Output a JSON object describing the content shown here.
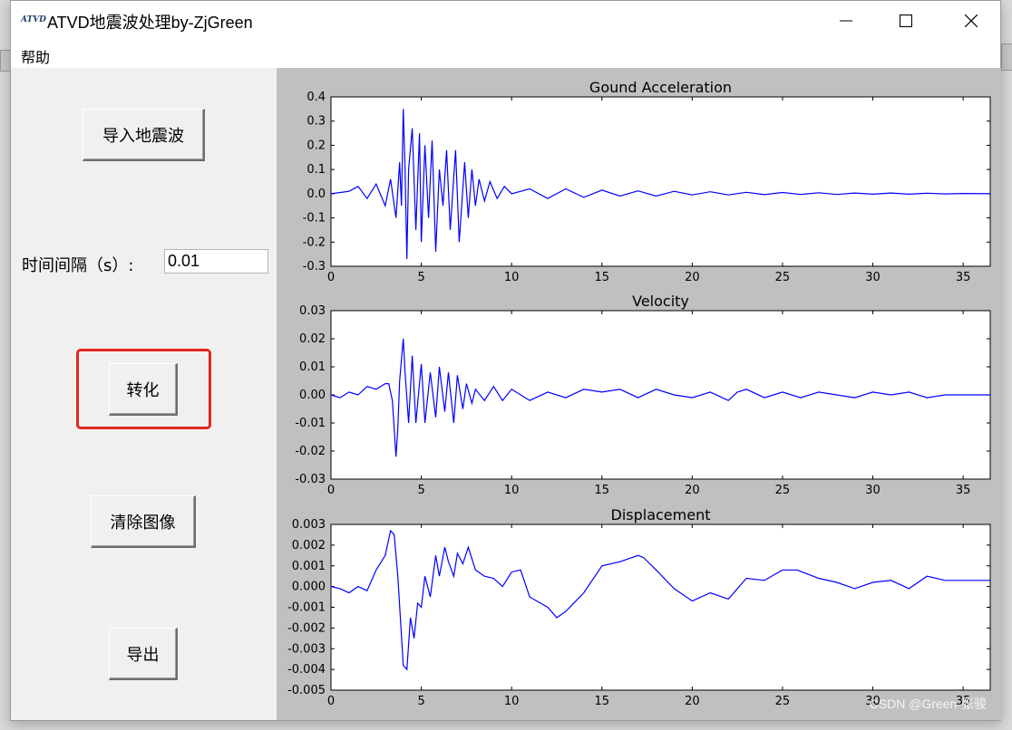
{
  "window": {
    "title": "ATVD地震波处理by-ZjGreen",
    "logo_text": "ATVD"
  },
  "menu": {
    "help": "帮助"
  },
  "left_panel": {
    "import_button": "导入地震波",
    "interval_label": "时间间隔（s）:",
    "interval_value": "0.01",
    "convert_button": "转化",
    "clear_button": "清除图像",
    "export_button": "导出"
  },
  "watermark": "CSDN @Green-张骏",
  "colors": {
    "trace": "#0000ff",
    "highlight": "#e2271f",
    "plot_bg": "#c0c0c0"
  },
  "chart_data": [
    {
      "type": "line",
      "title": "Gound Acceleration",
      "xlim": [
        0,
        36.5
      ],
      "ylim": [
        -0.3,
        0.4
      ],
      "xticks": [
        "0",
        "5",
        "10",
        "15",
        "20",
        "25",
        "30",
        "35"
      ],
      "yticks": [
        "0.4",
        "0.3",
        "0.2",
        "0.1",
        "0.0",
        "-0.1",
        "-0.2",
        "-0.3"
      ],
      "series": [
        {
          "x": [
            0,
            1,
            1.5,
            2,
            2.5,
            3,
            3.3,
            3.6,
            3.8,
            3.9,
            4.0,
            4.1,
            4.2,
            4.3,
            4.5,
            4.7,
            4.9,
            5.0,
            5.2,
            5.4,
            5.6,
            5.8,
            6.0,
            6.2,
            6.4,
            6.6,
            6.9,
            7.1,
            7.4,
            7.6,
            7.8,
            8.0,
            8.2,
            8.5,
            8.8,
            9.2,
            9.6,
            10,
            11,
            12,
            13,
            14,
            15,
            16,
            17,
            18,
            19,
            20,
            21,
            22,
            23,
            24,
            25,
            26,
            27,
            28,
            29,
            30,
            31,
            32,
            33,
            34,
            35,
            36.5
          ],
          "y": [
            0.0,
            0.01,
            0.03,
            -0.02,
            0.04,
            -0.05,
            0.06,
            -0.1,
            0.13,
            -0.05,
            0.35,
            0.1,
            -0.27,
            0.1,
            0.27,
            -0.15,
            0.25,
            -0.2,
            0.2,
            -0.1,
            0.22,
            -0.24,
            0.1,
            -0.05,
            0.18,
            -0.15,
            0.18,
            -0.2,
            0.13,
            -0.1,
            0.1,
            -0.05,
            0.06,
            -0.03,
            0.05,
            -0.02,
            0.03,
            0.0,
            0.02,
            -0.02,
            0.02,
            -0.015,
            0.015,
            -0.01,
            0.012,
            -0.01,
            0.01,
            -0.005,
            0.008,
            -0.005,
            0.006,
            -0.004,
            0.005,
            -0.003,
            0.004,
            -0.003,
            0.003,
            -0.002,
            0.003,
            -0.002,
            0.002,
            -0.001,
            0.001,
            0.0
          ]
        }
      ]
    },
    {
      "type": "line",
      "title": "Velocity",
      "xlim": [
        0,
        36.5
      ],
      "ylim": [
        -0.03,
        0.03
      ],
      "xticks": [
        "0",
        "5",
        "10",
        "15",
        "20",
        "25",
        "30",
        "35"
      ],
      "yticks": [
        "0.03",
        "0.02",
        "0.01",
        "0.00",
        "-0.01",
        "-0.02",
        "-0.03"
      ],
      "series": [
        {
          "x": [
            0,
            0.5,
            1.0,
            1.5,
            2.0,
            2.5,
            3.0,
            3.2,
            3.4,
            3.5,
            3.6,
            3.7,
            3.8,
            4.0,
            4.1,
            4.3,
            4.5,
            4.7,
            5.0,
            5.2,
            5.5,
            5.8,
            6.0,
            6.3,
            6.5,
            6.8,
            7.0,
            7.3,
            7.5,
            7.8,
            8.0,
            8.5,
            9.0,
            9.5,
            10,
            11,
            12,
            13,
            14,
            15,
            16,
            17,
            18,
            19,
            20,
            21,
            22,
            22.5,
            23,
            24,
            25,
            26,
            27,
            28,
            29,
            30,
            31,
            32,
            33,
            34,
            35,
            36.5
          ],
          "y": [
            0.0,
            -0.001,
            0.001,
            0.0,
            0.003,
            0.002,
            0.004,
            0.004,
            -0.002,
            -0.012,
            -0.022,
            -0.012,
            0.005,
            0.02,
            0.008,
            -0.01,
            0.014,
            -0.01,
            0.011,
            -0.01,
            0.008,
            -0.008,
            0.01,
            -0.006,
            0.008,
            -0.01,
            0.007,
            -0.005,
            0.004,
            -0.003,
            0.002,
            -0.002,
            0.003,
            -0.002,
            0.002,
            -0.002,
            0.001,
            -0.001,
            0.002,
            0.001,
            0.002,
            -0.001,
            0.002,
            0.0,
            -0.001,
            0.001,
            -0.002,
            0.001,
            0.002,
            -0.001,
            0.001,
            -0.001,
            0.001,
            0.0,
            -0.001,
            0.001,
            0.0,
            0.001,
            -0.001,
            0.0,
            0.0,
            0.0
          ]
        }
      ]
    },
    {
      "type": "line",
      "title": "Displacement",
      "xlim": [
        0,
        36.5
      ],
      "ylim": [
        -0.005,
        0.003
      ],
      "xticks": [
        "0",
        "5",
        "10",
        "15",
        "20",
        "25",
        "30",
        "35"
      ],
      "yticks": [
        "0.003",
        "0.002",
        "0.001",
        "0.000",
        "-0.001",
        "-0.002",
        "-0.003",
        "-0.004",
        "-0.005"
      ],
      "series": [
        {
          "x": [
            0,
            0.5,
            1.0,
            1.5,
            2.0,
            2.5,
            3.0,
            3.3,
            3.5,
            3.7,
            4.0,
            4.2,
            4.4,
            4.6,
            4.8,
            5.0,
            5.2,
            5.5,
            5.8,
            6.0,
            6.3,
            6.5,
            6.8,
            7.0,
            7.3,
            7.6,
            8.0,
            8.5,
            9.0,
            9.5,
            10.0,
            10.5,
            11,
            12,
            12.5,
            13,
            14,
            15,
            16,
            17,
            17.3,
            18,
            19,
            20,
            21,
            22,
            23,
            24,
            25,
            25.8,
            27,
            28,
            29,
            30,
            31,
            32,
            33,
            34,
            35,
            36.5
          ],
          "y": [
            0.0,
            -0.0001,
            -0.0003,
            0.0,
            -0.0002,
            0.0008,
            0.0015,
            0.0027,
            0.0025,
            0.0005,
            -0.0038,
            -0.004,
            -0.0015,
            -0.0025,
            -0.0008,
            -0.001,
            0.0005,
            -0.0005,
            0.0015,
            0.0005,
            0.0019,
            0.0012,
            0.0005,
            0.0016,
            0.0011,
            0.0019,
            0.0008,
            0.0005,
            0.0004,
            0.0,
            0.0007,
            0.0008,
            -0.0005,
            -0.001,
            -0.0015,
            -0.0012,
            -0.0003,
            0.001,
            0.0012,
            0.0015,
            0.0014,
            0.0008,
            -0.0001,
            -0.0007,
            -0.0003,
            -0.0006,
            0.0004,
            0.0003,
            0.0008,
            0.0008,
            0.0004,
            0.0002,
            -0.0001,
            0.0002,
            0.0003,
            -0.0001,
            0.0005,
            0.0003,
            0.0003,
            0.0003
          ]
        }
      ]
    }
  ]
}
